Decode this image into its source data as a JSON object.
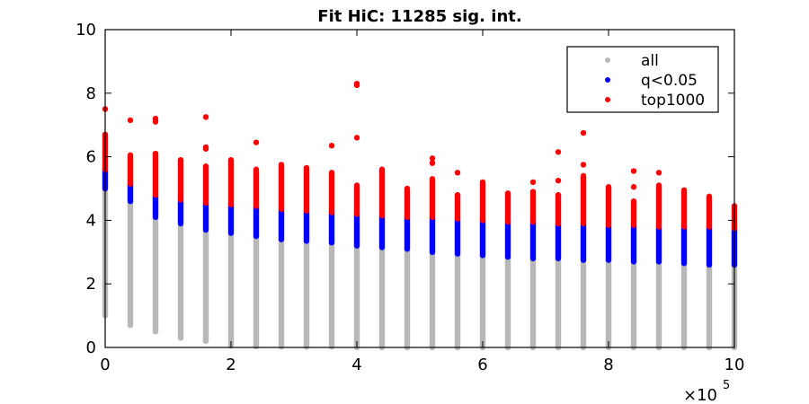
{
  "chart_data": {
    "type": "scatter",
    "title": "Fit HiC: 11285 sig. int.",
    "xlabel": "",
    "ylabel": "",
    "xlim": [
      0,
      1000000
    ],
    "ylim": [
      0,
      10
    ],
    "x_exponent_label": "×10",
    "x_exponent_power": "5",
    "x_ticks": [
      0,
      200000,
      400000,
      600000,
      800000,
      1000000
    ],
    "x_tick_labels": [
      "0",
      "2",
      "4",
      "6",
      "8",
      "10"
    ],
    "y_ticks": [
      0,
      2,
      4,
      6,
      8,
      10
    ],
    "y_tick_labels": [
      "0",
      "2",
      "4",
      "6",
      "8",
      "10"
    ],
    "grid": false,
    "legend_position": "top-right",
    "colors": {
      "all": "#b8b8b8",
      "sig": "#0000ff",
      "top": "#ff0000"
    },
    "series": [
      {
        "name": "all",
        "color": "#b8b8b8",
        "columns": [
          {
            "x": 0,
            "min": 1.0,
            "max": 5.0
          },
          {
            "x": 40000,
            "min": 0.7,
            "max": 4.6
          },
          {
            "x": 80000,
            "min": 0.5,
            "max": 4.1
          },
          {
            "x": 120000,
            "min": 0.3,
            "max": 3.9
          },
          {
            "x": 160000,
            "min": 0.2,
            "max": 3.7
          },
          {
            "x": 200000,
            "min": 0.05,
            "max": 3.6
          },
          {
            "x": 240000,
            "min": 0.03,
            "max": 3.5
          },
          {
            "x": 280000,
            "min": 0.02,
            "max": 3.4
          },
          {
            "x": 320000,
            "min": 0.02,
            "max": 3.35
          },
          {
            "x": 360000,
            "min": 0.02,
            "max": 3.3
          },
          {
            "x": 400000,
            "min": 0.0,
            "max": 3.2
          },
          {
            "x": 440000,
            "min": 0.0,
            "max": 3.15
          },
          {
            "x": 480000,
            "min": 0.0,
            "max": 3.1
          },
          {
            "x": 520000,
            "min": 0.0,
            "max": 3.0
          },
          {
            "x": 560000,
            "min": 0.0,
            "max": 2.95
          },
          {
            "x": 600000,
            "min": 0.0,
            "max": 2.9
          },
          {
            "x": 640000,
            "min": 0.0,
            "max": 2.85
          },
          {
            "x": 680000,
            "min": 0.0,
            "max": 2.8
          },
          {
            "x": 720000,
            "min": 0.0,
            "max": 2.8
          },
          {
            "x": 760000,
            "min": 0.0,
            "max": 2.75
          },
          {
            "x": 800000,
            "min": 0.0,
            "max": 2.75
          },
          {
            "x": 840000,
            "min": 0.0,
            "max": 2.7
          },
          {
            "x": 880000,
            "min": 0.0,
            "max": 2.7
          },
          {
            "x": 920000,
            "min": 0.0,
            "max": 2.65
          },
          {
            "x": 960000,
            "min": 0.0,
            "max": 2.6
          },
          {
            "x": 1000000,
            "min": 0.0,
            "max": 2.6
          }
        ]
      },
      {
        "name": "q<0.05",
        "color": "#0000ff",
        "columns": [
          {
            "x": 0,
            "min": 5.0,
            "max": 5.6
          },
          {
            "x": 40000,
            "min": 4.6,
            "max": 5.15
          },
          {
            "x": 80000,
            "min": 4.1,
            "max": 4.8
          },
          {
            "x": 120000,
            "min": 3.9,
            "max": 4.65
          },
          {
            "x": 160000,
            "min": 3.7,
            "max": 4.55
          },
          {
            "x": 200000,
            "min": 3.6,
            "max": 4.5
          },
          {
            "x": 240000,
            "min": 3.5,
            "max": 4.45
          },
          {
            "x": 280000,
            "min": 3.4,
            "max": 4.35
          },
          {
            "x": 320000,
            "min": 3.35,
            "max": 4.3
          },
          {
            "x": 360000,
            "min": 3.3,
            "max": 4.25
          },
          {
            "x": 400000,
            "min": 3.2,
            "max": 4.2
          },
          {
            "x": 440000,
            "min": 3.15,
            "max": 4.15
          },
          {
            "x": 480000,
            "min": 3.1,
            "max": 4.1
          },
          {
            "x": 520000,
            "min": 3.0,
            "max": 4.1
          },
          {
            "x": 560000,
            "min": 2.95,
            "max": 4.05
          },
          {
            "x": 600000,
            "min": 2.9,
            "max": 4.0
          },
          {
            "x": 640000,
            "min": 2.85,
            "max": 3.95
          },
          {
            "x": 680000,
            "min": 2.8,
            "max": 3.95
          },
          {
            "x": 720000,
            "min": 2.8,
            "max": 3.9
          },
          {
            "x": 760000,
            "min": 2.75,
            "max": 3.9
          },
          {
            "x": 800000,
            "min": 2.75,
            "max": 3.85
          },
          {
            "x": 840000,
            "min": 2.7,
            "max": 3.85
          },
          {
            "x": 880000,
            "min": 2.7,
            "max": 3.8
          },
          {
            "x": 920000,
            "min": 2.65,
            "max": 3.8
          },
          {
            "x": 960000,
            "min": 2.6,
            "max": 3.8
          },
          {
            "x": 1000000,
            "min": 2.6,
            "max": 3.75
          }
        ]
      },
      {
        "name": "top1000",
        "color": "#ff0000",
        "columns": [
          {
            "x": 0,
            "min": 5.6,
            "max": 6.7,
            "outliers": [
              7.5
            ]
          },
          {
            "x": 40000,
            "min": 5.15,
            "max": 6.05,
            "outliers": [
              7.15
            ]
          },
          {
            "x": 80000,
            "min": 4.8,
            "max": 6.1,
            "outliers": [
              7.1,
              7.2
            ]
          },
          {
            "x": 120000,
            "min": 4.65,
            "max": 5.9
          },
          {
            "x": 160000,
            "min": 4.55,
            "max": 5.7,
            "outliers": [
              6.25,
              6.3,
              7.25
            ]
          },
          {
            "x": 200000,
            "min": 4.5,
            "max": 5.9
          },
          {
            "x": 240000,
            "min": 4.45,
            "max": 5.6,
            "outliers": [
              6.45
            ]
          },
          {
            "x": 280000,
            "min": 4.35,
            "max": 5.75
          },
          {
            "x": 320000,
            "min": 4.3,
            "max": 5.65
          },
          {
            "x": 360000,
            "min": 4.25,
            "max": 5.5,
            "outliers": [
              6.35
            ]
          },
          {
            "x": 400000,
            "min": 4.2,
            "max": 5.1,
            "outliers": [
              6.6,
              8.25,
              8.3
            ]
          },
          {
            "x": 440000,
            "min": 4.15,
            "max": 5.6
          },
          {
            "x": 480000,
            "min": 4.1,
            "max": 5.0
          },
          {
            "x": 520000,
            "min": 4.1,
            "max": 5.3,
            "outliers": [
              5.8,
              5.95
            ]
          },
          {
            "x": 560000,
            "min": 4.05,
            "max": 4.8,
            "outliers": [
              5.5
            ]
          },
          {
            "x": 600000,
            "min": 4.0,
            "max": 5.2
          },
          {
            "x": 640000,
            "min": 3.95,
            "max": 4.85
          },
          {
            "x": 680000,
            "min": 3.95,
            "max": 4.9,
            "outliers": [
              5.2
            ]
          },
          {
            "x": 720000,
            "min": 3.9,
            "max": 4.8,
            "outliers": [
              5.25,
              6.15
            ]
          },
          {
            "x": 760000,
            "min": 3.9,
            "max": 5.4,
            "outliers": [
              5.75,
              6.75
            ]
          },
          {
            "x": 800000,
            "min": 3.85,
            "max": 5.05
          },
          {
            "x": 840000,
            "min": 3.85,
            "max": 4.6,
            "outliers": [
              5.05,
              5.55
            ]
          },
          {
            "x": 880000,
            "min": 3.8,
            "max": 5.1,
            "outliers": [
              5.5
            ]
          },
          {
            "x": 920000,
            "min": 3.8,
            "max": 4.95
          },
          {
            "x": 960000,
            "min": 3.8,
            "max": 4.75
          },
          {
            "x": 1000000,
            "min": 3.75,
            "max": 4.45
          }
        ]
      }
    ]
  }
}
